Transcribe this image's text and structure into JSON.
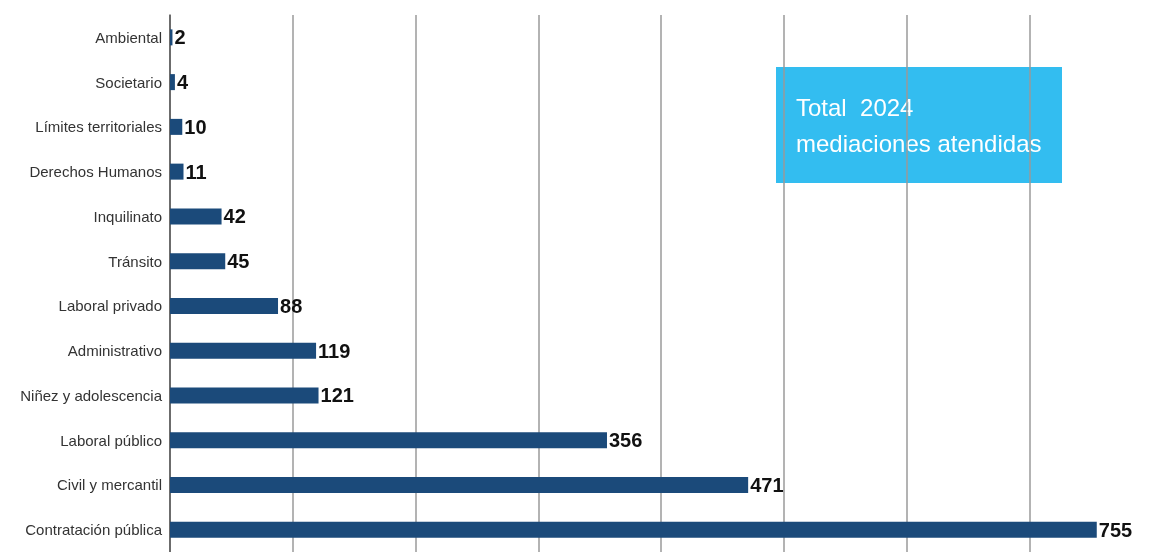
{
  "chart_data": {
    "type": "bar",
    "orientation": "horizontal",
    "categories": [
      "Ambiental",
      "Societario",
      "Límites territoriales",
      "Derechos Humanos",
      "Inquilinato",
      "Tránsito",
      "Laboral privado",
      "Administrativo",
      "Niñez y adolescencia",
      "Laboral público",
      "Civil y mercantil",
      "Contratación pública"
    ],
    "values": [
      2,
      4,
      10,
      11,
      42,
      45,
      88,
      119,
      121,
      356,
      471,
      755
    ],
    "color": "#1b4a7a",
    "xticks": [
      {
        "value": 0,
        "label": null
      },
      {
        "value": 100,
        "label": null
      },
      {
        "value": 200,
        "label": null
      },
      {
        "value": 300,
        "label": null
      },
      {
        "value": 400,
        "label": null
      },
      {
        "value": 500,
        "label": null
      },
      {
        "value": 600,
        "label": null
      },
      {
        "value": 700,
        "label": null
      }
    ],
    "tick_labels": "y",
    "grid": "x",
    "data_labels": true,
    "annotations": [
      "Total  2024\nmediaciones atendidas"
    ]
  }
}
